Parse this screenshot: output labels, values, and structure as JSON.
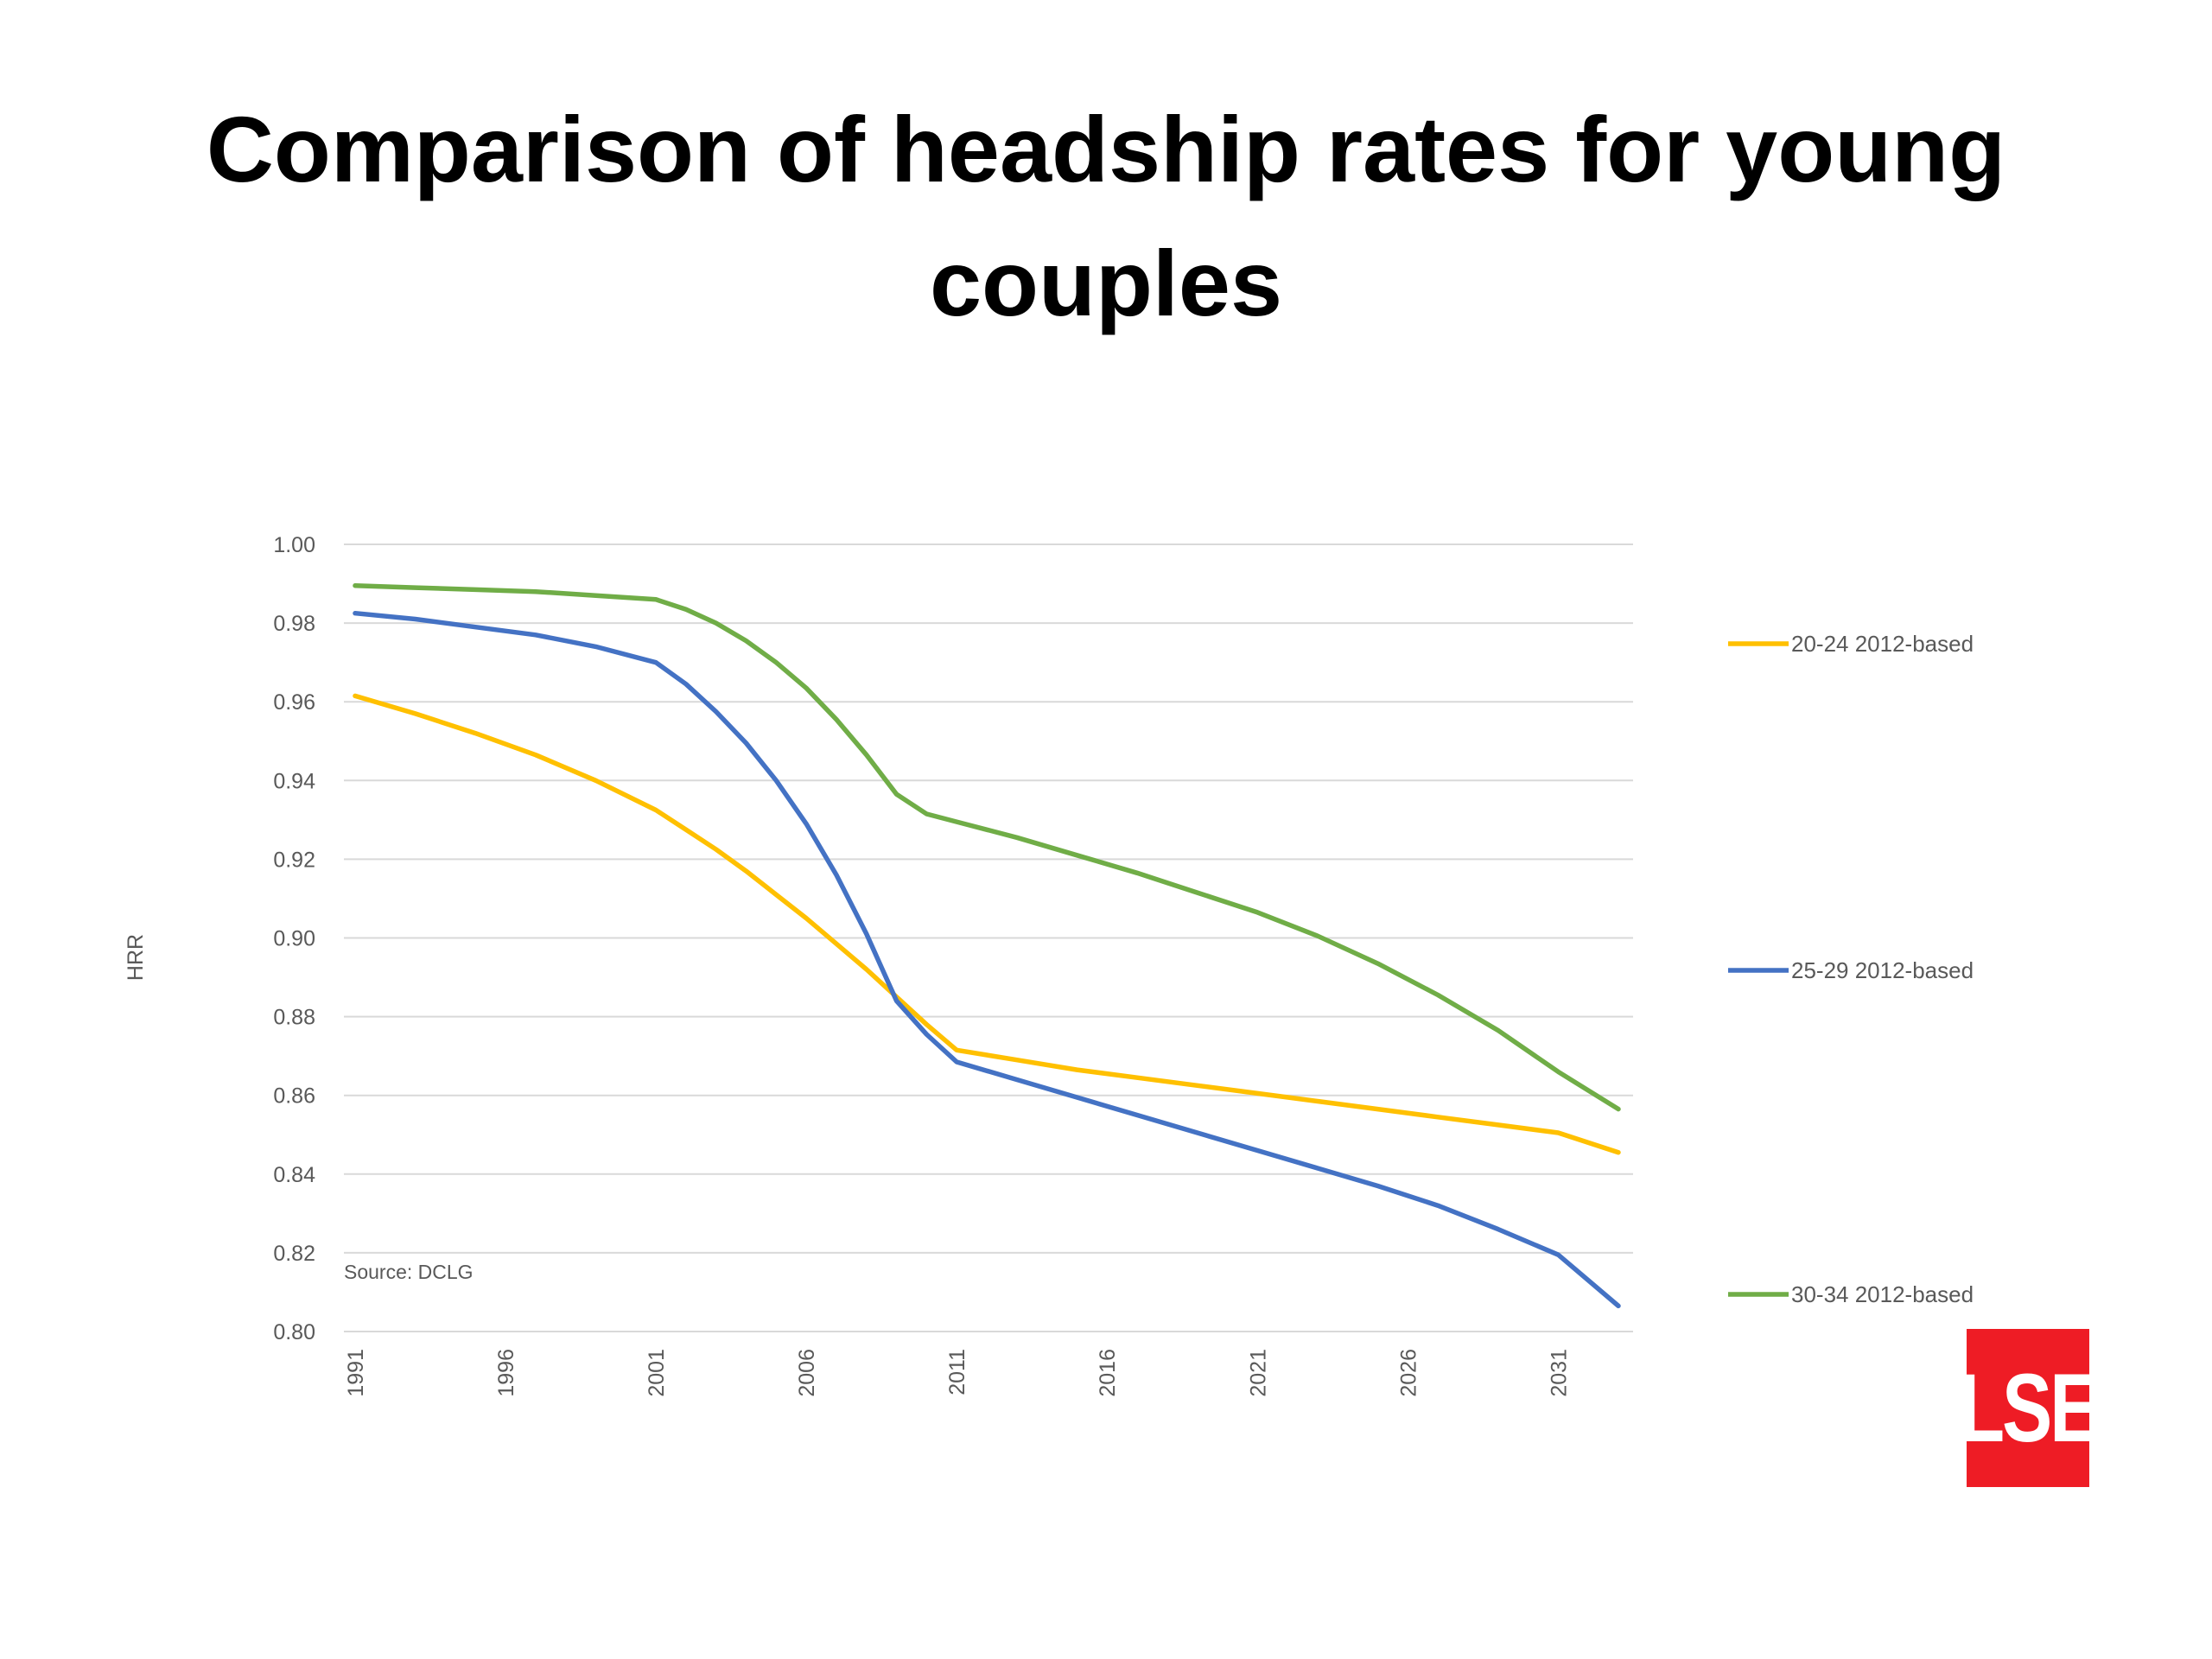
{
  "slide": {
    "title_line1": "Comparison of headship rates for young",
    "title_line2": "couples",
    "logo_text": "LSE"
  },
  "colors": {
    "grid": "#d9d9d9",
    "text": "#595959",
    "logo_bg": "#ee1c25"
  },
  "chart_data": {
    "type": "line",
    "ylabel": "HRR",
    "xlabel": "",
    "ylim": [
      0.8,
      1.0
    ],
    "xlim": [
      1991,
      2033
    ],
    "yticks": [
      "0.80",
      "0.82",
      "0.84",
      "0.86",
      "0.88",
      "0.90",
      "0.92",
      "0.94",
      "0.96",
      "0.98",
      "1.00"
    ],
    "xticks": [
      "1991",
      "1996",
      "2001",
      "2006",
      "2011",
      "2016",
      "2021",
      "2026",
      "2031"
    ],
    "grid": true,
    "legend_position": "right",
    "annotation": "Source: DCLG",
    "x": [
      1991,
      1993,
      1995,
      1997,
      1999,
      2001,
      2002,
      2003,
      2004,
      2005,
      2006,
      2007,
      2008,
      2009,
      2010,
      2011,
      2013,
      2015,
      2017,
      2019,
      2021,
      2023,
      2025,
      2027,
      2029,
      2031,
      2033
    ],
    "series": [
      {
        "name": "20-24 2012-based",
        "color": "#ffc000",
        "values": [
          0.9615,
          0.957,
          0.952,
          0.9465,
          0.94,
          0.9325,
          0.9275,
          0.9225,
          0.917,
          0.911,
          0.905,
          0.8985,
          0.892,
          0.885,
          0.878,
          0.8715,
          0.869,
          0.8665,
          0.8645,
          0.8625,
          0.8605,
          0.8585,
          0.8565,
          0.8545,
          0.8525,
          0.8505,
          0.8455
        ]
      },
      {
        "name": "25-29 2012-based",
        "color": "#4472c4",
        "values": [
          0.9825,
          0.981,
          0.979,
          0.977,
          0.974,
          0.97,
          0.9645,
          0.9575,
          0.9495,
          0.94,
          0.929,
          0.916,
          0.901,
          0.884,
          0.8755,
          0.8685,
          0.864,
          0.8595,
          0.855,
          0.8505,
          0.846,
          0.8415,
          0.837,
          0.832,
          0.826,
          0.8195,
          0.8065
        ]
      },
      {
        "name": "30-34 2012-based",
        "color": "#70ad47",
        "values": [
          0.9895,
          0.989,
          0.9885,
          0.988,
          0.987,
          0.986,
          0.9835,
          0.98,
          0.9755,
          0.97,
          0.9635,
          0.9555,
          0.9465,
          0.9365,
          0.9315,
          0.9295,
          0.9255,
          0.921,
          0.9165,
          0.9115,
          0.9065,
          0.9005,
          0.8935,
          0.8855,
          0.8765,
          0.866,
          0.8565
        ]
      }
    ]
  }
}
